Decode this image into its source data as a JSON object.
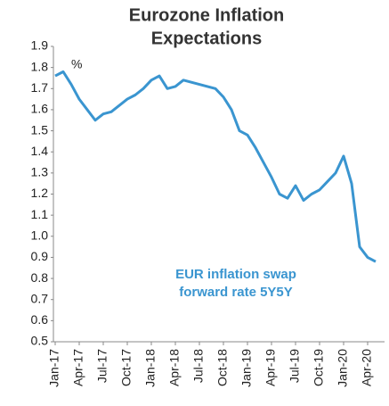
{
  "chart_data": {
    "type": "line",
    "title": [
      "Eurozone Inflation",
      "Expectations"
    ],
    "unit_label": "%",
    "annotation": [
      "EUR inflation swap",
      "forward rate 5Y5Y"
    ],
    "categories": [
      "Jan-17",
      null,
      null,
      "Apr-17",
      null,
      null,
      "Jul-17",
      null,
      null,
      "Oct-17",
      null,
      null,
      "Jan-18",
      null,
      null,
      "Apr-18",
      null,
      null,
      "Jul-18",
      null,
      null,
      "Oct-18",
      null,
      null,
      "Jan-19",
      null,
      null,
      "Apr-19",
      null,
      null,
      "Jul-19",
      null,
      null,
      "Oct-19",
      null,
      null,
      "Jan-20",
      null,
      null,
      "Apr-20",
      null
    ],
    "series": [
      {
        "name": "EUR inflation swap forward rate 5Y5Y",
        "color": "#3a95d0",
        "values": [
          1.76,
          1.78,
          1.72,
          1.65,
          1.6,
          1.55,
          1.58,
          1.59,
          1.62,
          1.65,
          1.67,
          1.7,
          1.74,
          1.76,
          1.7,
          1.71,
          1.74,
          1.73,
          1.72,
          1.71,
          1.7,
          1.66,
          1.6,
          1.5,
          1.48,
          1.42,
          1.35,
          1.28,
          1.2,
          1.18,
          1.24,
          1.17,
          1.2,
          1.22,
          1.26,
          1.3,
          1.38,
          1.25,
          0.95,
          0.9,
          0.88
        ]
      }
    ],
    "ylim": [
      0.5,
      1.9
    ],
    "yticks": [
      0.5,
      0.6,
      0.7,
      0.8,
      0.9,
      {
        "value": 1,
        "label": "1.0"
      },
      1.1,
      1.2,
      1.3,
      1.4,
      1.5,
      1.6,
      1.7,
      1.8,
      1.9
    ],
    "grid": false
  }
}
